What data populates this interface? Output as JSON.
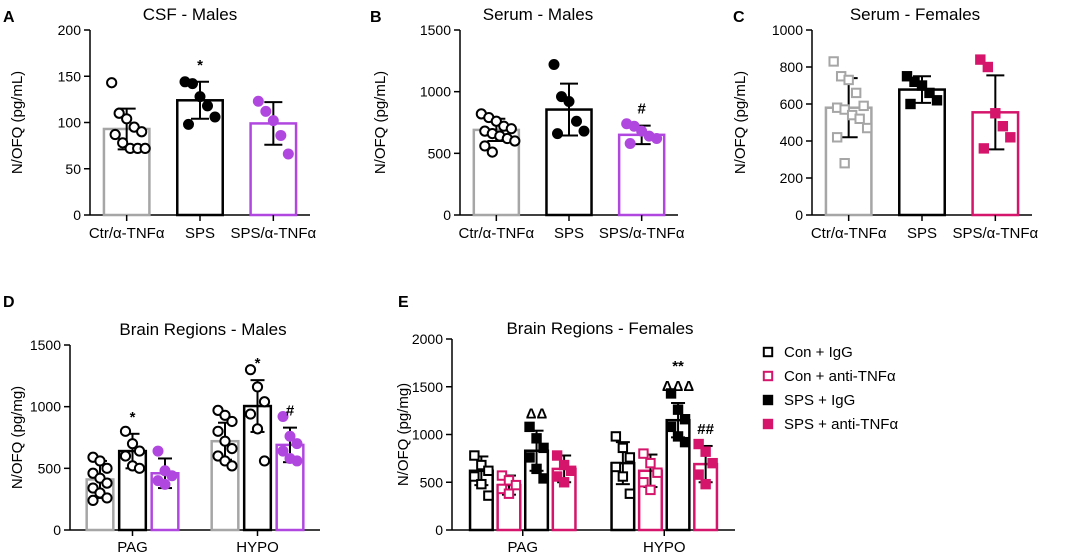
{
  "chart_data": [
    {
      "panel": "A",
      "type": "bar",
      "title": "CSF - Males",
      "ylabel": "N/OFQ (pg/mL)",
      "xlabel": "",
      "ylim": [
        0,
        200
      ],
      "yticks": [
        0,
        50,
        100,
        150,
        200
      ],
      "categories": [
        "Ctr/α-TNFα",
        "SPS",
        "SPS/α-TNFα"
      ],
      "series": [
        {
          "name": "Ctr/α-TNFα",
          "color": "#a6a6a6",
          "marker": "open-circle",
          "mean": 93,
          "sd": 22,
          "points": [
            143,
            110,
            104,
            95,
            90,
            87,
            78,
            72,
            72,
            72
          ]
        },
        {
          "name": "SPS",
          "color": "#000000",
          "marker": "filled-circle",
          "mean": 124,
          "sd": 20,
          "points": [
            144,
            142,
            128,
            118,
            106,
            98
          ]
        },
        {
          "name": "SPS/α-TNFα",
          "color": "#b048e0",
          "marker": "filled-circle",
          "mean": 99,
          "sd": 23,
          "points": [
            123,
            112,
            102,
            86,
            66
          ]
        }
      ],
      "annotations": [
        {
          "text": "*",
          "category": "SPS"
        }
      ]
    },
    {
      "panel": "B",
      "type": "bar",
      "title": "Serum - Males",
      "ylabel": "N/OFQ (pg/mL)",
      "xlabel": "",
      "ylim": [
        0,
        1500
      ],
      "yticks": [
        0,
        500,
        1000,
        1500
      ],
      "categories": [
        "Ctr/α-TNFα",
        "SPS",
        "SPS/α-TNFα"
      ],
      "series": [
        {
          "name": "Ctr/α-TNFα",
          "color": "#a6a6a6",
          "marker": "open-circle",
          "mean": 690,
          "sd": 90,
          "points": [
            820,
            790,
            760,
            720,
            700,
            680,
            660,
            640,
            620,
            600,
            560,
            510
          ]
        },
        {
          "name": "SPS",
          "color": "#000000",
          "marker": "filled-circle",
          "mean": 855,
          "sd": 210,
          "points": [
            1220,
            960,
            920,
            760,
            680,
            660
          ]
        },
        {
          "name": "SPS/α-TNFα",
          "color": "#b048e0",
          "marker": "filled-circle",
          "mean": 650,
          "sd": 75,
          "points": [
            740,
            720,
            680,
            640,
            620,
            580
          ]
        }
      ],
      "annotations": [
        {
          "text": "#",
          "category": "SPS/α-TNFα"
        }
      ]
    },
    {
      "panel": "C",
      "type": "bar",
      "title": "Serum - Females",
      "ylabel": "N/OFQ (pg/mL)",
      "xlabel": "",
      "ylim": [
        0,
        1000
      ],
      "yticks": [
        0,
        200,
        400,
        600,
        800,
        1000
      ],
      "categories": [
        "Ctr/α-TNFα",
        "SPS",
        "SPS/α-TNFα"
      ],
      "series": [
        {
          "name": "Ctr/α-TNFα",
          "color": "#a6a6a6",
          "marker": "open-square",
          "mean": 580,
          "sd": 160,
          "points": [
            830,
            750,
            730,
            660,
            590,
            580,
            570,
            540,
            520,
            470,
            420,
            280
          ]
        },
        {
          "name": "SPS",
          "color": "#000000",
          "marker": "filled-square",
          "mean": 678,
          "sd": 72,
          "points": [
            750,
            720,
            700,
            660,
            620,
            600
          ]
        },
        {
          "name": "SPS/α-TNFα",
          "color": "#d4156b",
          "marker": "filled-square",
          "mean": 555,
          "sd": 200,
          "points": [
            840,
            800,
            550,
            480,
            420,
            360
          ]
        }
      ],
      "annotations": []
    },
    {
      "panel": "D",
      "type": "bar",
      "title": "Brain Regions - Males",
      "ylabel": "N/OFQ (pg/mg)",
      "xlabel": "",
      "ylim": [
        0,
        1500
      ],
      "yticks": [
        0,
        500,
        1000,
        1500
      ],
      "categories": [
        "PAG",
        "HYPO"
      ],
      "series": [
        {
          "name": "Ctr/α-TNFα",
          "color": "#a6a6a6",
          "marker": "open-circle",
          "values": [
            410,
            720
          ],
          "sd": [
            150,
            150
          ],
          "points": [
            [
              590,
              560,
              500,
              460,
              420,
              380,
              340,
              300,
              260,
              240
            ],
            [
              970,
              930,
              880,
              800,
              720,
              660,
              600,
              560,
              520
            ]
          ]
        },
        {
          "name": "SPS",
          "color": "#000000",
          "marker": "open-circle-black",
          "values": [
            640,
            1005
          ],
          "sd": [
            140,
            210
          ],
          "points": [
            [
              800,
              700,
              640,
              600,
              520,
              500
            ],
            [
              1300,
              1160,
              1040,
              940,
              820,
              560
            ]
          ]
        },
        {
          "name": "SPS/α-TNFα",
          "color": "#b048e0",
          "marker": "filled-circle",
          "values": [
            460,
            690
          ],
          "sd": [
            120,
            140
          ],
          "points": [
            [
              640,
              480,
              440,
              400,
              370
            ],
            [
              920,
              760,
              700,
              640,
              580,
              560
            ]
          ]
        }
      ],
      "annotations": [
        {
          "text": "*",
          "category": "PAG",
          "series": "SPS"
        },
        {
          "text": "*",
          "category": "HYPO",
          "series": "SPS"
        },
        {
          "text": "#",
          "category": "HYPO",
          "series": "SPS/α-TNFα"
        }
      ]
    },
    {
      "panel": "E",
      "type": "bar",
      "title": "Brain Regions - Females",
      "ylabel": "N/OFQ (pg/mg)",
      "xlabel": "",
      "ylim": [
        0,
        2000
      ],
      "yticks": [
        0,
        500,
        1000,
        1500,
        2000
      ],
      "categories": [
        "PAG",
        "HYPO"
      ],
      "series": [
        {
          "name": "Con + IgG",
          "color": "#000000",
          "marker": "open-square",
          "values": [
            620,
            700
          ],
          "sd": [
            150,
            220
          ],
          "points": [
            [
              780,
              680,
              620,
              560,
              480,
              360
            ],
            [
              980,
              860,
              760,
              660,
              560,
              380
            ]
          ]
        },
        {
          "name": "Con + anti-TNFα",
          "color": "#d4156b",
          "marker": "open-square",
          "values": [
            470,
            620
          ],
          "sd": [
            100,
            170
          ],
          "points": [
            [
              570,
              520,
              470,
              430,
              380
            ],
            [
              800,
              700,
              600,
              500,
              420
            ]
          ]
        },
        {
          "name": "SPS + IgG",
          "color": "#000000",
          "marker": "filled-square",
          "values": [
            830,
            1150
          ],
          "sd": [
            210,
            180
          ],
          "points": [
            [
              1080,
              960,
              860,
              760,
              640,
              540
            ],
            [
              1430,
              1260,
              1160,
              1080,
              980,
              920
            ]
          ]
        },
        {
          "name": "SPS + anti-TNFα",
          "color": "#d4156b",
          "marker": "filled-square",
          "values": [
            640,
            690
          ],
          "sd": [
            140,
            190
          ],
          "points": [
            [
              780,
              680,
              620,
              560,
              500
            ],
            [
              900,
              820,
              700,
              580,
              480
            ]
          ]
        }
      ],
      "annotations": [
        {
          "text": "ΔΔ",
          "category": "PAG",
          "series": "SPS + IgG"
        },
        {
          "text": "ΔΔΔ",
          "category": "HYPO",
          "series": "SPS + IgG"
        },
        {
          "text": "**",
          "category": "HYPO",
          "series": "SPS + IgG"
        },
        {
          "text": "##",
          "category": "HYPO",
          "series": "SPS + anti-TNFα"
        }
      ],
      "legend": {
        "position": "right",
        "entries": [
          "Con + IgG",
          "Con + anti-TNFα",
          "SPS + IgG",
          "SPS + anti-TNFα"
        ]
      }
    }
  ]
}
